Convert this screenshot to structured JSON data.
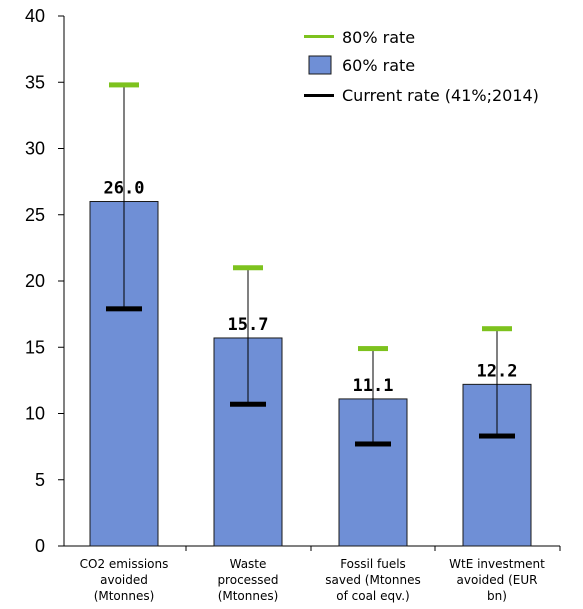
{
  "chart_data": {
    "type": "bar",
    "title": "",
    "xlabel": "",
    "ylabel": "",
    "ylim": [
      0,
      40
    ],
    "yticks": [
      "0",
      "5",
      "10",
      "15",
      "20",
      "25",
      "30",
      "35",
      "40"
    ],
    "grid": false,
    "legend_position": "top-right",
    "categories": [
      [
        "CO2 emissions",
        "avoided",
        "(Mtonnes)"
      ],
      [
        "Waste",
        "processed",
        "(Mtonnes)"
      ],
      [
        "Fossil fuels",
        "saved (Mtonnes",
        "of coal eqv.)"
      ],
      [
        "WtE investment",
        "avoided (EUR",
        "bn)"
      ]
    ],
    "series": [
      {
        "name": "80% rate",
        "type": "marker",
        "color": "#7dc21e",
        "values": [
          34.8,
          21.0,
          14.9,
          16.4
        ]
      },
      {
        "name": "60% rate",
        "type": "bar",
        "color": "#6f8fd6",
        "values": [
          26.0,
          15.7,
          11.1,
          12.2
        ]
      },
      {
        "name": "Current rate (41%;2014)",
        "type": "marker",
        "color": "#000000",
        "values": [
          17.9,
          10.7,
          7.7,
          8.3
        ]
      }
    ],
    "data_labels": [
      "26.0",
      "15.7",
      "11.1",
      "12.2"
    ]
  }
}
